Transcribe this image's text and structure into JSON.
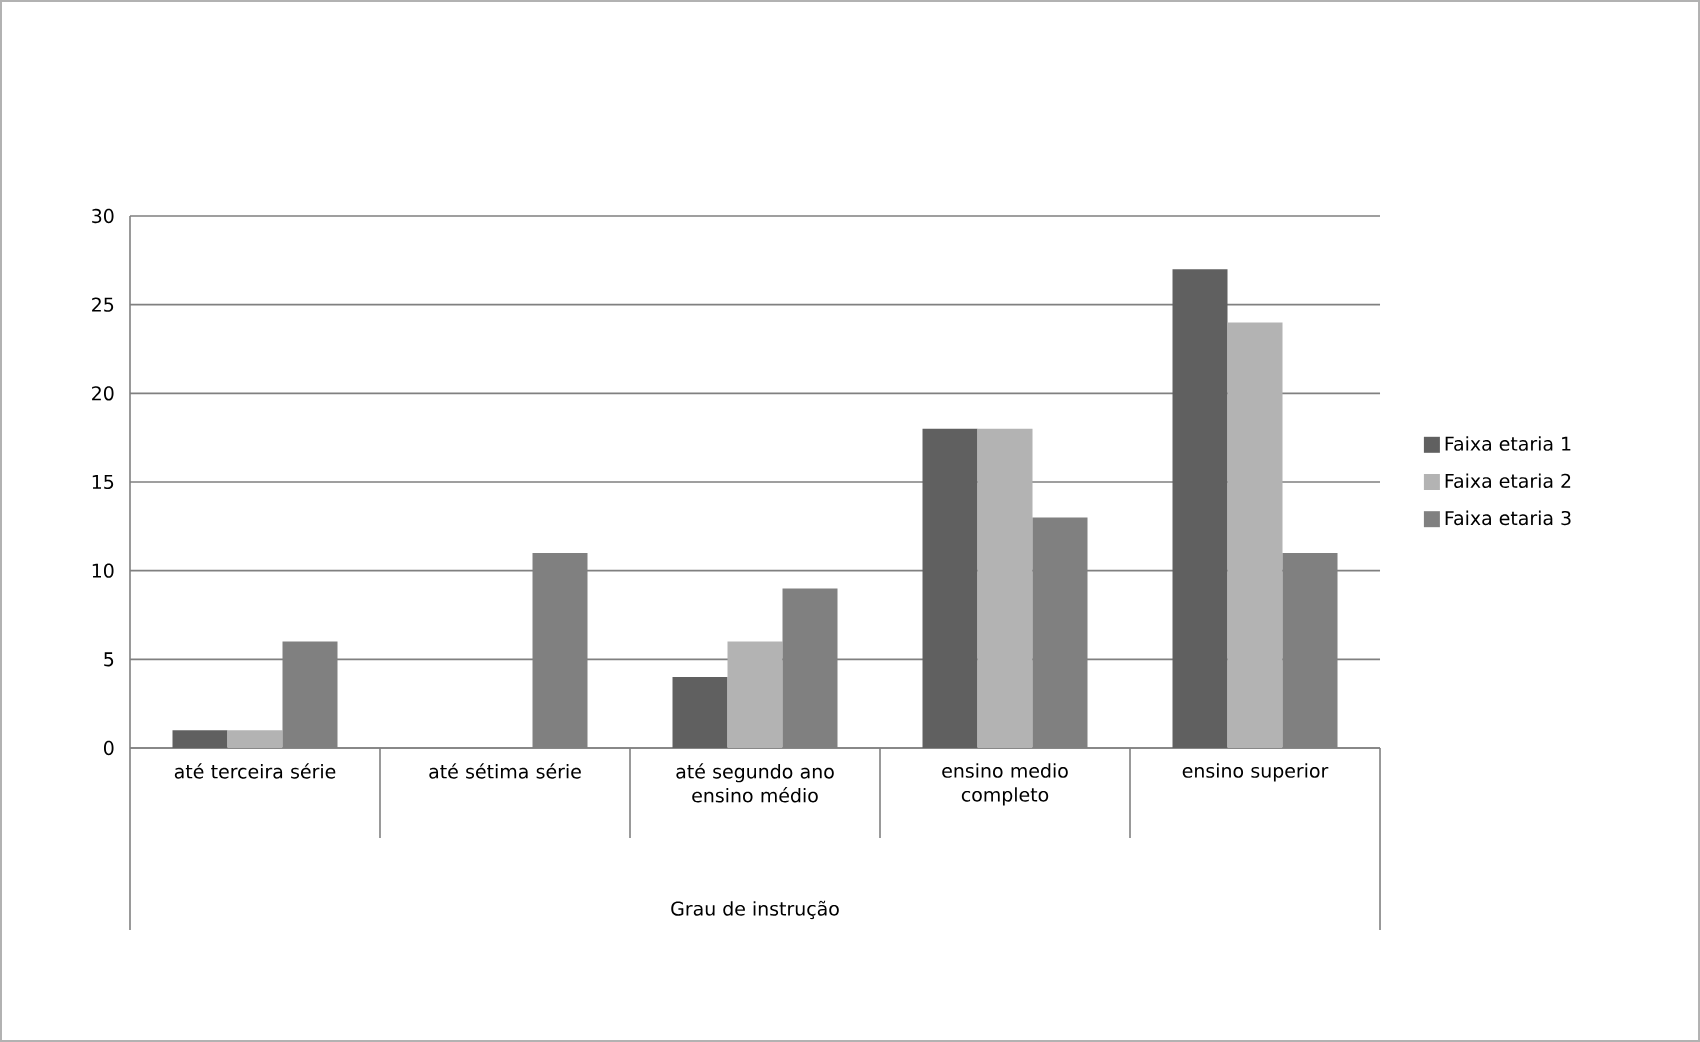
{
  "chart_data": {
    "type": "bar",
    "annotations": [
      "Grau de instrução"
    ],
    "categories": [
      "até terceira série",
      "até sétima série",
      "até segundo ano ensino médio",
      "ensino medio completo",
      "ensino superior"
    ],
    "series": [
      {
        "name": "Faixa etaria 1",
        "color": "#606060",
        "values": [
          1,
          0,
          4,
          18,
          27
        ]
      },
      {
        "name": "Faixa etaria 2",
        "color": "#b3b3b3",
        "values": [
          1,
          0,
          6,
          18,
          24
        ]
      },
      {
        "name": "Faixa etaria 3",
        "color": "#808080",
        "values": [
          6,
          11,
          9,
          13,
          11
        ]
      }
    ],
    "ylim": [
      0,
      30
    ],
    "yticks": [
      0,
      5,
      10,
      15,
      20,
      25,
      30
    ],
    "grid": "y",
    "legend": "right"
  }
}
